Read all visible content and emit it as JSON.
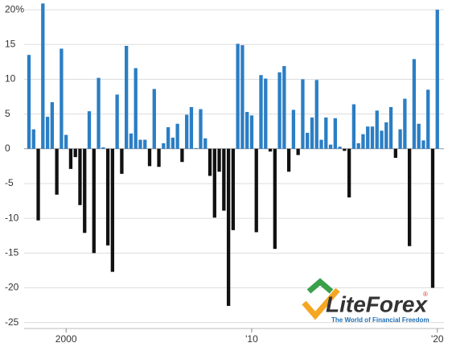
{
  "chart_data": {
    "type": "bar",
    "categories": [
      null,
      null,
      null,
      null,
      null,
      null,
      null,
      null,
      "2000",
      null,
      null,
      null,
      null,
      null,
      null,
      null,
      null,
      null,
      null,
      null,
      null,
      null,
      null,
      null,
      null,
      null,
      null,
      null,
      null,
      null,
      null,
      null,
      null,
      null,
      null,
      null,
      null,
      null,
      null,
      null,
      null,
      null,
      null,
      null,
      null,
      null,
      null,
      null,
      "'10",
      null,
      null,
      null,
      null,
      null,
      null,
      null,
      null,
      null,
      null,
      null,
      null,
      null,
      null,
      null,
      null,
      null,
      null,
      null,
      null,
      null,
      null,
      null,
      null,
      null,
      null,
      null,
      null,
      null,
      null,
      null,
      null,
      null,
      null,
      null,
      null,
      null,
      null,
      null,
      "'20"
    ],
    "values": [
      13.5,
      2.8,
      -10.3,
      20.9,
      4.6,
      6.7,
      -6.6,
      14.4,
      2.0,
      -2.9,
      -1.2,
      -8.1,
      -12.1,
      5.4,
      -15.0,
      10.2,
      0.2,
      -13.9,
      -17.7,
      7.8,
      -3.6,
      14.8,
      2.2,
      11.6,
      1.3,
      1.3,
      -2.5,
      8.6,
      -2.6,
      0.8,
      3.1,
      1.6,
      3.6,
      -1.9,
      4.9,
      6.0,
      0.1,
      5.7,
      1.5,
      -3.9,
      -9.9,
      -3.3,
      -8.9,
      -22.6,
      -11.7,
      15.1,
      14.9,
      5.3,
      4.8,
      -12.0,
      10.6,
      10.1,
      -0.4,
      -14.4,
      11.0,
      11.9,
      -3.3,
      5.6,
      -0.9,
      10.0,
      2.3,
      4.5,
      9.9,
      1.3,
      4.5,
      0.6,
      4.4,
      0.3,
      -0.3,
      -7.0,
      6.4,
      0.8,
      2.1,
      3.2,
      3.2,
      5.5,
      2.6,
      3.8,
      6.0,
      -1.3,
      2.8,
      7.2,
      -14.0,
      12.9,
      3.6,
      1.2,
      8.5,
      -20.0,
      20.0
    ],
    "color": "#2b7ec4",
    "negative_color": "#111111",
    "ylim": [
      -25.5,
      21.4
    ],
    "yticks": [
      {
        "value": 20,
        "label": "20%"
      },
      15,
      10,
      5,
      0,
      -5,
      -10,
      -15,
      -20,
      -25
    ],
    "grid": true
  },
  "logo": {
    "name": "LiteForex",
    "mark": "®",
    "tagline": "The World of Financial Freedom"
  }
}
